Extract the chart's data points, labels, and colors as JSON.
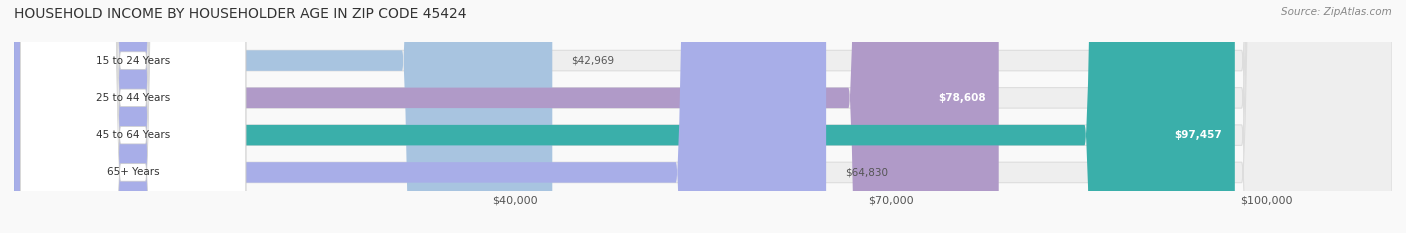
{
  "title": "HOUSEHOLD INCOME BY HOUSEHOLDER AGE IN ZIP CODE 45424",
  "source": "Source: ZipAtlas.com",
  "categories": [
    "15 to 24 Years",
    "25 to 44 Years",
    "45 to 64 Years",
    "65+ Years"
  ],
  "values": [
    42969,
    78608,
    97457,
    64830
  ],
  "bar_colors": [
    "#a8c4e0",
    "#b09ac8",
    "#3aafaa",
    "#a8aee8"
  ],
  "bar_track_color": "#eeeeee",
  "label_colors": [
    "#555555",
    "#ffffff",
    "#ffffff",
    "#555555"
  ],
  "x_max": 110000,
  "x_ticks": [
    40000,
    70000,
    100000
  ],
  "x_tick_labels": [
    "$40,000",
    "$70,000",
    "$100,000"
  ],
  "background_color": "#f9f9f9",
  "bar_height": 0.55,
  "figsize": [
    14.06,
    2.33
  ],
  "dpi": 100
}
